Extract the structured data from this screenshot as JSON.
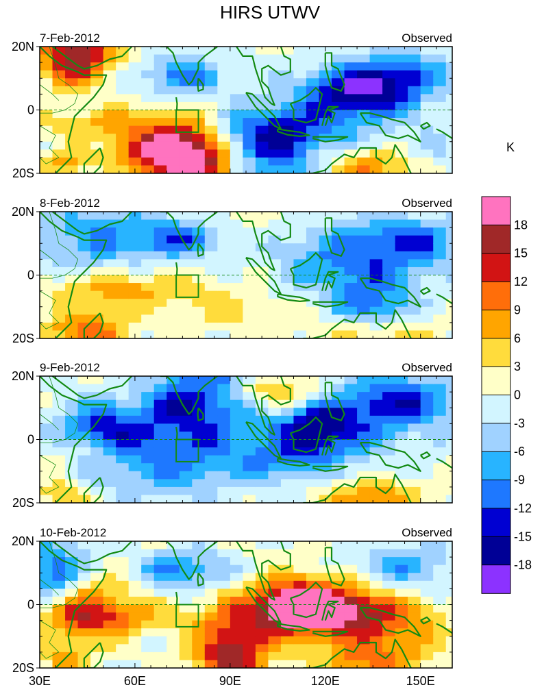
{
  "title": "HIRS UTWV",
  "units_label": "K",
  "panel_type_label": "Observed",
  "panels": [
    {
      "date": "7-Feb-2012",
      "seed": 7
    },
    {
      "date": "8-Feb-2012",
      "seed": 8
    },
    {
      "date": "9-Feb-2012",
      "seed": 9
    },
    {
      "date": "10-Feb-2012",
      "seed": 10
    }
  ],
  "map_extent": {
    "lon_min": 30,
    "lon_max": 160,
    "lat_min": -20,
    "lat_max": 20
  },
  "lat_ticks": [
    {
      "value": 20,
      "label": "20N"
    },
    {
      "value": 0,
      "label": "0"
    },
    {
      "value": -20,
      "label": "20S"
    }
  ],
  "lon_ticks": [
    {
      "value": 30,
      "label": "30E"
    },
    {
      "value": 60,
      "label": "60E"
    },
    {
      "value": 90,
      "label": "90E"
    },
    {
      "value": 120,
      "label": "120E"
    },
    {
      "value": 150,
      "label": "150E"
    }
  ],
  "box_region": {
    "lon_min": 73,
    "lon_max": 80,
    "lat_min": -7,
    "lat_max": 0
  },
  "colorbar": {
    "labels": [
      "18",
      "15",
      "12",
      "9",
      "6",
      "3",
      "0",
      "-3",
      "-6",
      "-9",
      "-12",
      "-15",
      "-18"
    ],
    "colors": [
      "#ff73bf",
      "#a02828",
      "#d21414",
      "#ff6e0a",
      "#ffa500",
      "#ffdc3c",
      "#ffffc8",
      "#d2f5ff",
      "#a0d2ff",
      "#28b4ff",
      "#1e78ff",
      "#0000d2",
      "#000096",
      "#8c32ff"
    ]
  },
  "colors": {
    "coast": "#138a13",
    "equator": "#138a13"
  }
}
